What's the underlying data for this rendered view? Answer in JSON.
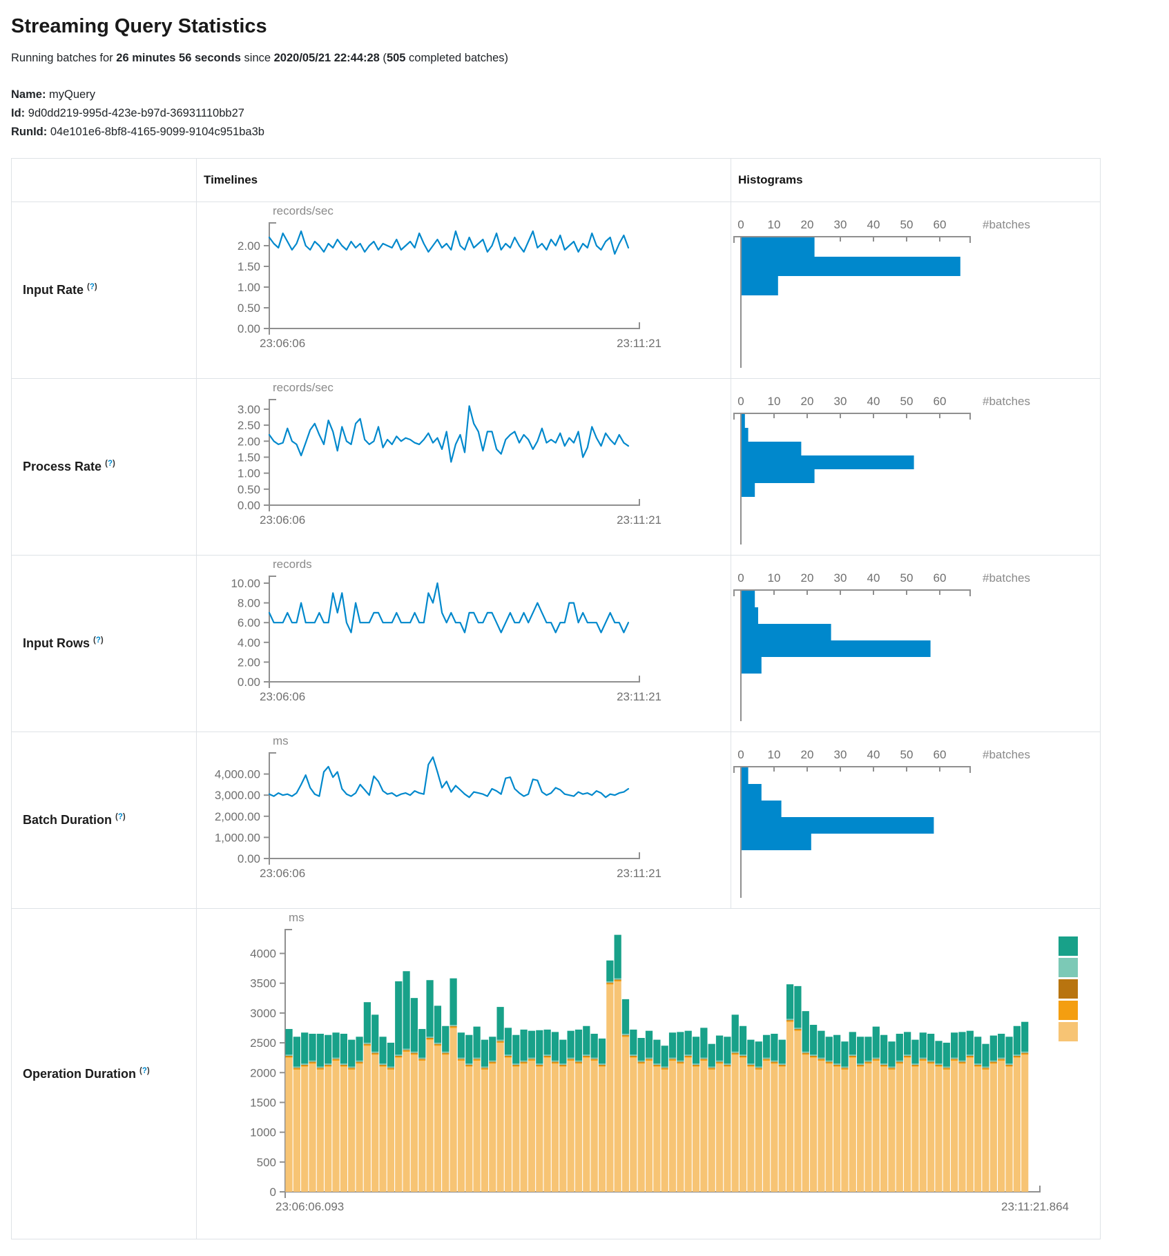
{
  "page": {
    "title": "Streaming Query Statistics"
  },
  "subtitle": {
    "prefix": "Running batches for ",
    "duration": "26 minutes 56 seconds",
    "mid": " since ",
    "timestamp": "2020/05/21 22:44:28",
    "paren": " (",
    "batches": "505",
    "suffix": " completed batches)"
  },
  "meta": {
    "name_label": "Name:",
    "name": "myQuery",
    "id_label": "Id:",
    "id": "9d0dd219-995d-423e-b97d-36931110bb27",
    "runid_label": "RunId:",
    "runid": "04e101e6-8bf8-4165-9099-9104c951ba3b"
  },
  "table": {
    "col_timelines": "Timelines",
    "col_histograms": "Histograms",
    "help": {
      "open": "(",
      "q": "?",
      "close": ")"
    },
    "rows": [
      {
        "label": "Input Rate"
      },
      {
        "label": "Process Rate"
      },
      {
        "label": "Input Rows"
      },
      {
        "label": "Batch Duration"
      },
      {
        "label": "Operation Duration"
      }
    ]
  },
  "colors": {
    "series_blue": "#0088cc",
    "axis": "#8f8f8f",
    "tick_text": "#6f6f6f",
    "unit_text": "#8a8a8a"
  },
  "chart_data": [
    {
      "id": "input-rate-timeline",
      "type": "line",
      "title": "Input Rate",
      "ylabel": "records/sec",
      "x_start": "23:06:06",
      "x_end": "23:11:21",
      "yticks": [
        0,
        0.5,
        1,
        1.5,
        2
      ],
      "ytick_labels": [
        "0.00",
        "0.50",
        "1.00",
        "1.50",
        "2.00"
      ],
      "ymax": 2.55,
      "grid": false,
      "values": [
        2.2,
        2.05,
        1.95,
        2.3,
        2.1,
        1.9,
        2.05,
        2.35,
        2.0,
        1.9,
        2.1,
        2.0,
        1.85,
        2.05,
        1.95,
        2.15,
        2.0,
        1.9,
        2.1,
        1.95,
        2.05,
        1.85,
        2.0,
        2.1,
        1.9,
        2.05,
        2.0,
        1.95,
        2.15,
        1.9,
        2.0,
        2.1,
        1.95,
        2.3,
        2.05,
        1.85,
        2.0,
        2.15,
        1.95,
        2.05,
        1.9,
        2.35,
        2.0,
        1.9,
        2.2,
        1.95,
        2.05,
        2.15,
        1.85,
        2.0,
        2.3,
        1.9,
        2.05,
        1.95,
        2.2,
        2.0,
        1.85,
        2.1,
        2.35,
        1.95,
        2.05,
        1.9,
        2.15,
        2.0,
        2.25,
        1.9,
        2.0,
        2.1,
        1.85,
        2.05,
        1.95,
        2.3,
        2.0,
        1.9,
        2.1,
        2.2,
        1.8,
        2.05,
        2.25,
        1.95
      ]
    },
    {
      "id": "input-rate-histogram",
      "type": "bar",
      "orientation": "horizontal",
      "title": "Input Rate histogram",
      "xlabel": "#batches",
      "xticks": [
        0,
        10,
        20,
        30,
        40,
        50,
        60
      ],
      "xmax": 69,
      "values": [
        22,
        66,
        11
      ]
    },
    {
      "id": "process-rate-timeline",
      "type": "line",
      "title": "Process Rate",
      "ylabel": "records/sec",
      "x_start": "23:06:06",
      "x_end": "23:11:21",
      "yticks": [
        0,
        0.5,
        1,
        1.5,
        2,
        2.5,
        3
      ],
      "ytick_labels": [
        "0.00",
        "0.50",
        "1.00",
        "1.50",
        "2.00",
        "2.50",
        "3.00"
      ],
      "ymax": 3.3,
      "grid": false,
      "values": [
        2.2,
        2.0,
        1.9,
        1.95,
        2.4,
        2.0,
        1.9,
        1.55,
        1.95,
        2.35,
        2.55,
        2.2,
        1.9,
        2.65,
        2.3,
        1.7,
        2.45,
        2.0,
        1.9,
        2.55,
        2.7,
        2.05,
        1.9,
        2.0,
        2.45,
        1.8,
        2.05,
        1.9,
        2.15,
        2.0,
        2.1,
        2.05,
        1.95,
        1.9,
        2.05,
        2.25,
        1.95,
        2.1,
        1.75,
        2.3,
        1.35,
        1.9,
        2.2,
        1.65,
        3.1,
        2.55,
        2.3,
        1.7,
        2.3,
        2.3,
        1.75,
        1.6,
        2.05,
        2.2,
        2.3,
        1.95,
        2.2,
        2.05,
        1.75,
        2.0,
        2.4,
        1.95,
        2.05,
        1.95,
        2.25,
        1.85,
        2.1,
        1.95,
        2.3,
        1.5,
        1.8,
        2.45,
        2.1,
        1.85,
        2.25,
        2.05,
        1.9,
        2.2,
        1.95,
        1.85
      ]
    },
    {
      "id": "process-rate-histogram",
      "type": "bar",
      "orientation": "horizontal",
      "title": "Process Rate histogram",
      "xlabel": "#batches",
      "xticks": [
        0,
        10,
        20,
        30,
        40,
        50,
        60
      ],
      "xmax": 69,
      "values": [
        1,
        2,
        18,
        52,
        22,
        4
      ]
    },
    {
      "id": "input-rows-timeline",
      "type": "line",
      "title": "Input Rows",
      "ylabel": "records",
      "x_start": "23:06:06",
      "x_end": "23:11:21",
      "yticks": [
        0,
        2,
        4,
        6,
        8,
        10
      ],
      "ytick_labels": [
        "0.00",
        "2.00",
        "4.00",
        "6.00",
        "8.00",
        "10.00"
      ],
      "ymax": 10.7,
      "grid": false,
      "values": [
        7,
        6,
        6,
        6,
        7,
        6,
        6,
        8,
        6,
        6,
        6,
        7,
        6,
        6,
        9,
        7,
        9,
        6,
        5,
        8,
        6,
        6,
        6,
        7,
        7,
        6,
        6,
        6,
        7,
        6,
        6,
        6,
        7,
        6,
        6,
        9,
        8,
        10,
        7,
        6,
        7,
        6,
        6,
        5,
        7,
        7,
        6,
        6,
        7,
        7,
        6,
        5,
        6,
        7,
        6,
        6,
        7,
        6,
        7,
        8,
        7,
        6,
        6,
        5,
        6,
        6,
        8,
        8,
        6,
        7,
        6,
        6,
        6,
        5,
        6,
        7,
        6,
        6,
        5,
        6
      ]
    },
    {
      "id": "input-rows-histogram",
      "type": "bar",
      "orientation": "horizontal",
      "title": "Input Rows histogram",
      "xlabel": "#batches",
      "xticks": [
        0,
        10,
        20,
        30,
        40,
        50,
        60
      ],
      "xmax": 69,
      "values": [
        4,
        5,
        27,
        57,
        6
      ]
    },
    {
      "id": "batch-duration-timeline",
      "type": "line",
      "title": "Batch Duration",
      "ylabel": "ms",
      "x_start": "23:06:06",
      "x_end": "23:11:21",
      "yticks": [
        0,
        1000,
        2000,
        3000,
        4000
      ],
      "ytick_labels": [
        "0.00",
        "1,000.00",
        "2,000.00",
        "3,000.00",
        "4,000.00"
      ],
      "ymax": 5000,
      "grid": false,
      "values": [
        3050,
        2950,
        3100,
        3000,
        3050,
        2950,
        3100,
        3500,
        3950,
        3350,
        3050,
        2950,
        4100,
        4350,
        3850,
        4100,
        3300,
        3050,
        2950,
        3100,
        3500,
        3250,
        3000,
        3900,
        3650,
        3200,
        3050,
        3100,
        2950,
        3050,
        3100,
        3000,
        3200,
        3100,
        3050,
        4450,
        4800,
        4100,
        3350,
        3650,
        3150,
        3450,
        3250,
        3050,
        2900,
        3150,
        3100,
        3050,
        2950,
        3300,
        3200,
        3050,
        3800,
        3850,
        3300,
        3100,
        2950,
        3050,
        3750,
        3700,
        3150,
        3000,
        3100,
        3350,
        3250,
        3050,
        3000,
        2950,
        3150,
        3050,
        3100,
        3000,
        3200,
        3100,
        2900,
        3050,
        3000,
        3100,
        3150,
        3300
      ]
    },
    {
      "id": "batch-duration-histogram",
      "type": "bar",
      "orientation": "horizontal",
      "title": "Batch Duration histogram",
      "xlabel": "#batches",
      "xticks": [
        0,
        10,
        20,
        30,
        40,
        50,
        60
      ],
      "xmax": 69,
      "values": [
        2,
        6,
        12,
        58,
        21
      ]
    },
    {
      "id": "operation-duration",
      "type": "stacked-bar",
      "title": "Operation Duration",
      "ylabel": "ms",
      "x_start": "23:06:06.093",
      "x_end": "23:11:21.864",
      "yticks": [
        0,
        500,
        1000,
        1500,
        2000,
        2500,
        3000,
        3500,
        4000
      ],
      "ytick_labels": [
        "0",
        "500",
        "1000",
        "1500",
        "2000",
        "2500",
        "3000",
        "3500",
        "4000"
      ],
      "ymax": 4400,
      "grid": false,
      "legend_position": "right",
      "legend_labels_visible": false,
      "series": [
        {
          "name": "segment-green",
          "color": "#18A189",
          "values": [
            430,
            500,
            520,
            450,
            550,
            480,
            420,
            500,
            450,
            400,
            680,
            620,
            450,
            400,
            1230,
            1300,
            900,
            480,
            950,
            620,
            430,
            780,
            420,
            480,
            520,
            450,
            400,
            550,
            450,
            480,
            520,
            450,
            560,
            420,
            480,
            400,
            450,
            520,
            480,
            400,
            420,
            350,
            730,
            580,
            420,
            380,
            450,
            400,
            350,
            420,
            480,
            400,
            450,
            500,
            380,
            420,
            450,
            620,
            480,
            400,
            420,
            380,
            450,
            400,
            580,
            700,
            680,
            500,
            450,
            400,
            480,
            420,
            380,
            450,
            400,
            520,
            480,
            420,
            450,
            380,
            400,
            420,
            450,
            380,
            400,
            420,
            480,
            400,
            450,
            380,
            420,
            400,
            450,
            480,
            500
          ]
        },
        {
          "name": "segment-light-teal",
          "color": "#7CC9B6",
          "const_value": 20
        },
        {
          "name": "segment-dark-orange",
          "color": "#B8740F",
          "const_value": 12
        },
        {
          "name": "segment-orange",
          "color": "#F49E10",
          "const_value": 20
        },
        {
          "name": "segment-light-orange",
          "color": "#F7C474",
          "values": [
            2250,
            2050,
            2100,
            2150,
            2050,
            2100,
            2200,
            2100,
            2050,
            2150,
            2450,
            2300,
            2100,
            2050,
            2250,
            2350,
            2300,
            2200,
            2550,
            2450,
            2300,
            2750,
            2200,
            2100,
            2200,
            2050,
            2150,
            2500,
            2250,
            2100,
            2150,
            2200,
            2100,
            2250,
            2150,
            2100,
            2200,
            2150,
            2250,
            2200,
            2100,
            3480,
            3530,
            2600,
            2250,
            2150,
            2200,
            2100,
            2050,
            2200,
            2150,
            2250,
            2100,
            2200,
            2050,
            2150,
            2100,
            2300,
            2250,
            2100,
            2050,
            2200,
            2150,
            2100,
            2850,
            2700,
            2300,
            2250,
            2200,
            2150,
            2100,
            2050,
            2250,
            2100,
            2150,
            2200,
            2100,
            2050,
            2150,
            2250,
            2100,
            2200,
            2150,
            2100,
            2050,
            2200,
            2150,
            2250,
            2100,
            2050,
            2150,
            2200,
            2100,
            2250,
            2300
          ]
        }
      ]
    }
  ]
}
